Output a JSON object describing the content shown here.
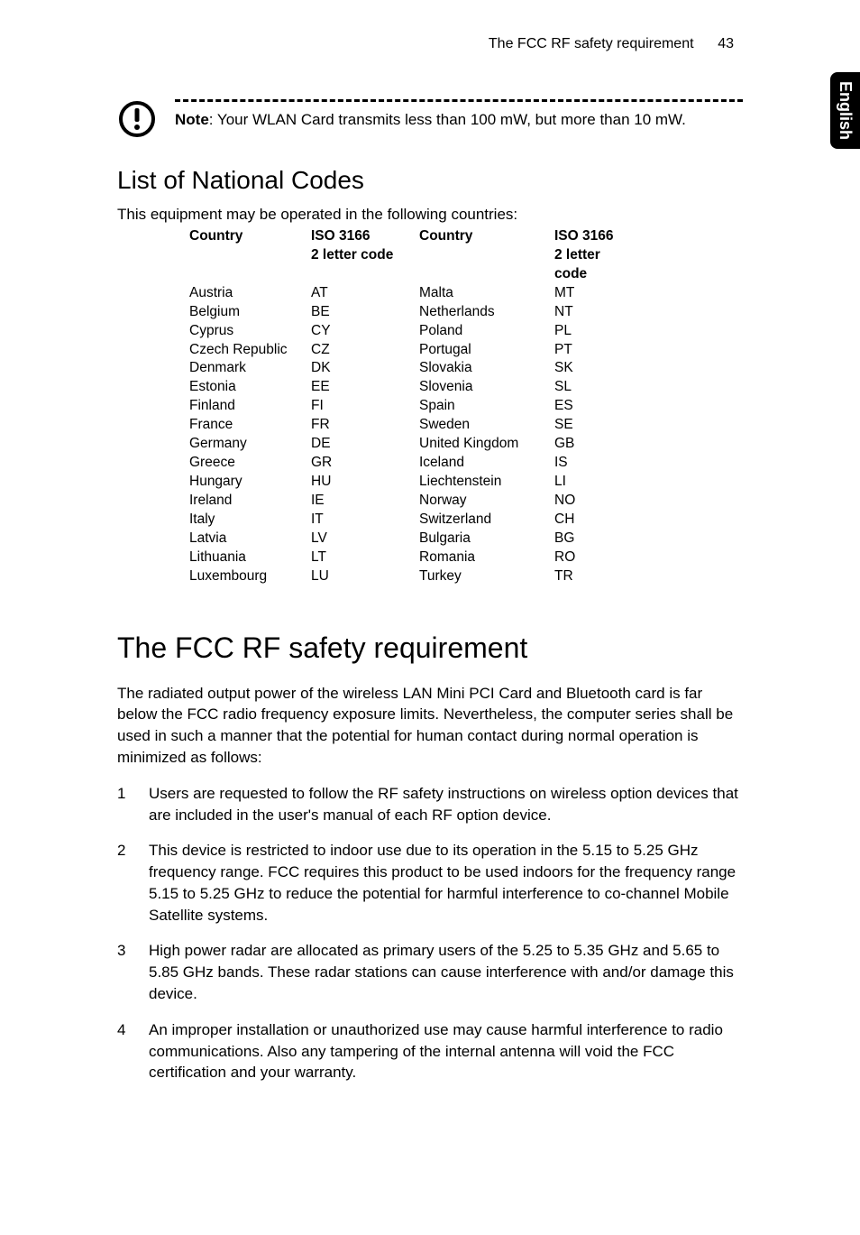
{
  "header": {
    "title": "The FCC RF safety requirement",
    "page_number": "43"
  },
  "side_tab": "English",
  "note": {
    "label": "Note",
    "text": ": Your WLAN Card transmits less than 100 mW, but more than 10 mW."
  },
  "national_codes": {
    "heading": "List of National Codes",
    "intro": "This equipment may be operated in the following countries:",
    "header_country": "Country",
    "header_iso1": "ISO 3166",
    "header_iso2": "2 letter code",
    "rows": [
      {
        "c1": "Austria",
        "d1": "AT",
        "c2": "Malta",
        "d2": "MT"
      },
      {
        "c1": "Belgium",
        "d1": "BE",
        "c2": "Netherlands",
        "d2": "NT"
      },
      {
        "c1": "Cyprus",
        "d1": "CY",
        "c2": "Poland",
        "d2": "PL"
      },
      {
        "c1": "Czech Republic",
        "d1": "CZ",
        "c2": "Portugal",
        "d2": "PT"
      },
      {
        "c1": "Denmark",
        "d1": "DK",
        "c2": "Slovakia",
        "d2": "SK"
      },
      {
        "c1": "Estonia",
        "d1": "EE",
        "c2": "Slovenia",
        "d2": "SL"
      },
      {
        "c1": "Finland",
        "d1": "FI",
        "c2": "Spain",
        "d2": "ES"
      },
      {
        "c1": "France",
        "d1": "FR",
        "c2": "Sweden",
        "d2": "SE"
      },
      {
        "c1": "Germany",
        "d1": "DE",
        "c2": "United Kingdom",
        "d2": "GB"
      },
      {
        "c1": "Greece",
        "d1": "GR",
        "c2": "Iceland",
        "d2": "IS"
      },
      {
        "c1": "Hungary",
        "d1": "HU",
        "c2": "Liechtenstein",
        "d2": "LI"
      },
      {
        "c1": "Ireland",
        "d1": "IE",
        "c2": "Norway",
        "d2": "NO"
      },
      {
        "c1": "Italy",
        "d1": "IT",
        "c2": "Switzerland",
        "d2": "CH"
      },
      {
        "c1": "Latvia",
        "d1": "LV",
        "c2": "Bulgaria",
        "d2": "BG"
      },
      {
        "c1": "Lithuania",
        "d1": "LT",
        "c2": "Romania",
        "d2": "RO"
      },
      {
        "c1": "Luxembourg",
        "d1": "LU",
        "c2": "Turkey",
        "d2": "TR"
      }
    ]
  },
  "fcc": {
    "heading": "The FCC RF safety requirement",
    "para": "The radiated output power of the wireless LAN Mini PCI Card and Bluetooth card is far below the FCC radio frequency exposure limits. Nevertheless, the computer series shall be used in such a manner that the potential for human contact during normal operation is minimized as follows:",
    "items": [
      "Users are requested to follow the RF safety instructions on wireless option devices that are included in the user's manual of each RF option device.",
      "This device is restricted to indoor use due to its operation in the 5.15 to 5.25 GHz frequency range. FCC requires this product to be used indoors for the frequency range 5.15 to 5.25 GHz to reduce the potential for harmful interference to co-channel Mobile Satellite systems.",
      "High power radar are allocated as primary users of the 5.25 to 5.35 GHz and 5.65 to 5.85 GHz bands. These radar stations can cause interference with and/or damage this device.",
      "An improper installation or unauthorized use may cause harmful interference to radio communications. Also any tampering of the internal antenna will void the FCC certification and your warranty."
    ]
  }
}
